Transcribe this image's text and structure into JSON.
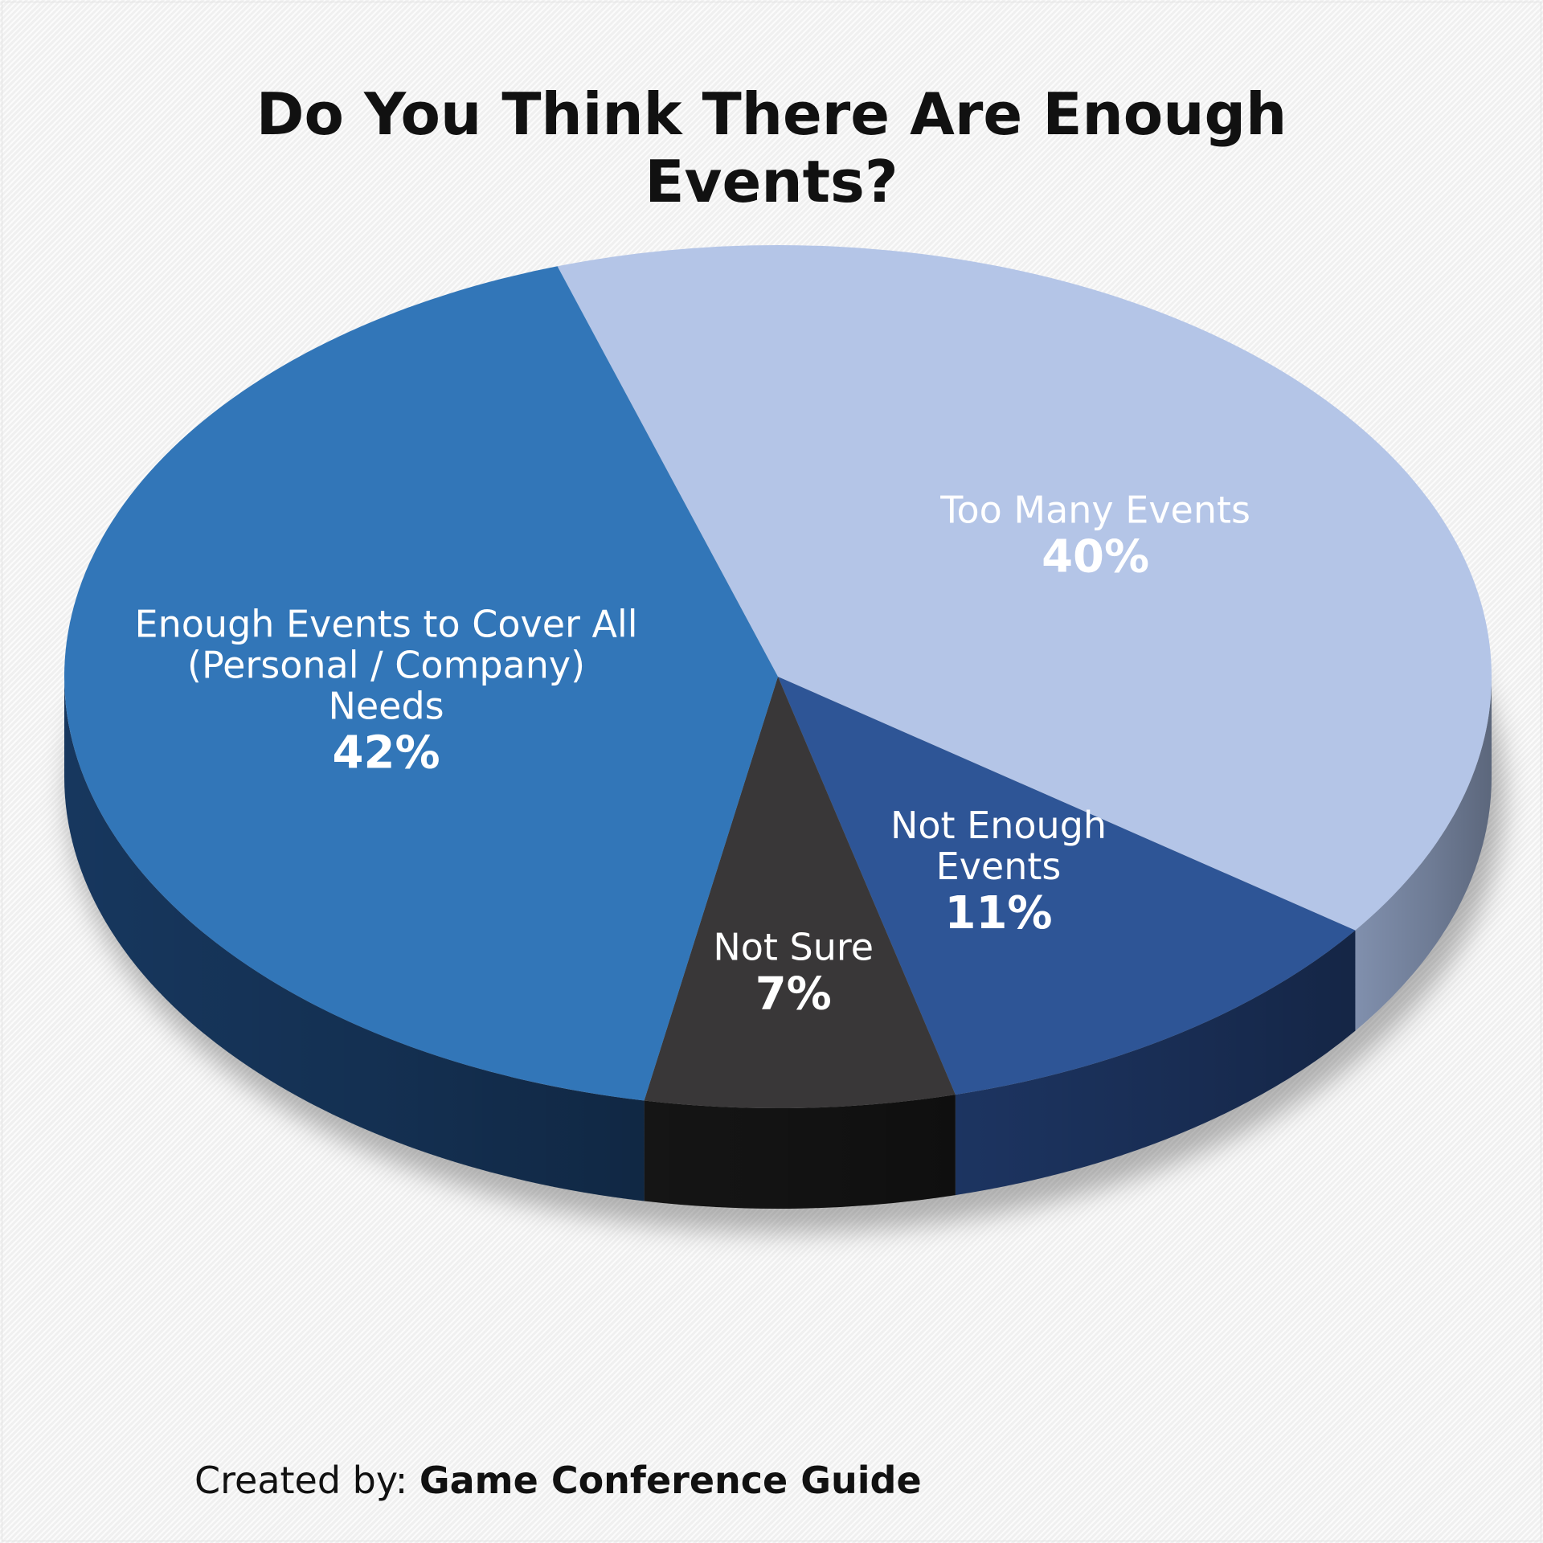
{
  "chart_data": {
    "type": "pie",
    "title_lines": [
      "Do You Think There Are Enough",
      "Events?"
    ],
    "slices": [
      {
        "label_lines": [
          "Too Many Events"
        ],
        "value": 40,
        "value_label": "40%",
        "color": "#b4c5e7",
        "side_color": "#8797b6"
      },
      {
        "label_lines": [
          "Not Enough",
          "Events"
        ],
        "value": 11,
        "value_label": "11%",
        "color": "#2e5596",
        "side_color": "#1e3766"
      },
      {
        "label_lines": [
          "Not Sure"
        ],
        "value": 7,
        "value_label": "7%",
        "color": "#393738",
        "side_color": "#161616"
      },
      {
        "label_lines": [
          "Enough Events to Cover All",
          "(Personal / Company)",
          "Needs"
        ],
        "value": 42,
        "value_label": "42%",
        "color": "#3276b8",
        "side_color": "#183a63"
      }
    ]
  },
  "credit": {
    "prefix": "Created by:",
    "brand": "Game Conference Guide"
  }
}
